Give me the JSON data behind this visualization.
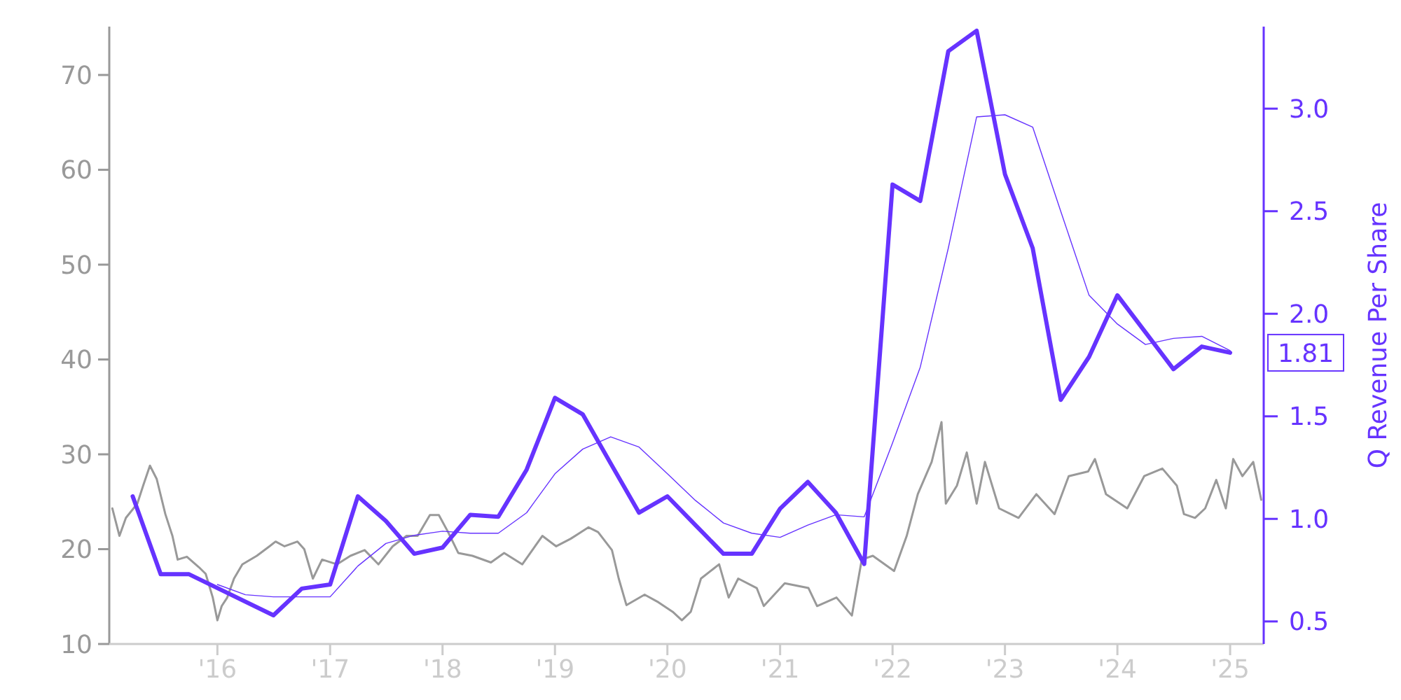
{
  "chart_data": {
    "type": "line",
    "y2label": "Q Revenue Per Share",
    "xlim": [
      "2015-01-15",
      "2025-04-20"
    ],
    "xticks": [
      {
        "value": "2016-01-01",
        "label": "'16"
      },
      {
        "value": "2017-01-01",
        "label": "'17"
      },
      {
        "value": "2018-01-01",
        "label": "'18"
      },
      {
        "value": "2019-01-01",
        "label": "'19"
      },
      {
        "value": "2020-01-01",
        "label": "'20"
      },
      {
        "value": "2021-01-01",
        "label": "'21"
      },
      {
        "value": "2022-01-01",
        "label": "'22"
      },
      {
        "value": "2023-01-01",
        "label": "'23"
      },
      {
        "value": "2024-01-01",
        "label": "'24"
      },
      {
        "value": "2025-01-01",
        "label": "'25"
      }
    ],
    "ylim": [
      10,
      75.1
    ],
    "yticks": [
      10,
      20,
      30,
      40,
      50,
      60,
      70
    ],
    "y2lim": [
      0.39,
      3.4
    ],
    "y2ticks": [
      0.5,
      {
        "value": 1,
        "label": "1.0"
      },
      1.5,
      {
        "value": 2,
        "label": "2.0"
      },
      2.5,
      {
        "value": 3,
        "label": "3.0"
      }
    ],
    "grid": false,
    "marker": "none",
    "line_style": "solid",
    "annotations": [
      "1.81"
    ],
    "series": [
      {
        "color": "#999999",
        "x": [
          "2015-01-25",
          "2015-02-17",
          "2015-03-10",
          "2015-04-16",
          "2015-05-05",
          "2015-05-27",
          "2015-06-18",
          "2015-07-16",
          "2015-08-08",
          "2015-08-25",
          "2015-09-24",
          "2015-11-02",
          "2015-11-24",
          "2015-12-17",
          "2016-01-01",
          "2016-01-15",
          "2016-02-02",
          "2016-02-24",
          "2016-03-22",
          "2016-05-08",
          "2016-06-18",
          "2016-07-08",
          "2016-08-06",
          "2016-09-17",
          "2016-10-09",
          "2016-11-06",
          "2016-12-06",
          "2017-01-23",
          "2017-03-08",
          "2017-04-23",
          "2017-06-07",
          "2017-07-23",
          "2017-09-06",
          "2017-10-12",
          "2017-11-21",
          "2017-12-20",
          "2018-01-19",
          "2018-02-21",
          "2018-04-08",
          "2018-06-07",
          "2018-07-20",
          "2018-09-17",
          "2018-11-21",
          "2019-01-05",
          "2019-02-21",
          "2019-04-20",
          "2019-05-21",
          "2019-07-05",
          "2019-07-27",
          "2019-08-21",
          "2019-10-19",
          "2019-12-03",
          "2020-01-18",
          "2020-02-17",
          "2020-03-17",
          "2020-04-19",
          "2020-06-17",
          "2020-07-18",
          "2020-08-18",
          "2020-10-17",
          "2020-11-09",
          "2021-01-16",
          "2021-04-03",
          "2021-05-01",
          "2021-07-03",
          "2021-08-22",
          "2021-09-23",
          "2021-10-29",
          "2022-01-06",
          "2022-02-16",
          "2022-03-24",
          "2022-05-08",
          "2022-06-09",
          "2022-06-23",
          "2022-07-29",
          "2022-08-30",
          "2022-10-01",
          "2022-10-28",
          "2022-12-13",
          "2023-02-14",
          "2023-04-13",
          "2023-06-11",
          "2023-07-27",
          "2023-09-28",
          "2023-10-20",
          "2023-11-25",
          "2024-02-02",
          "2024-03-28",
          "2024-05-26",
          "2024-07-12",
          "2024-08-04",
          "2024-09-09",
          "2024-10-12",
          "2024-11-17",
          "2024-12-18",
          "2025-01-11",
          "2025-02-10",
          "2025-03-17",
          "2025-04-12"
        ],
        "values": [
          24.3,
          21.4,
          23.3,
          24.8,
          26.7,
          28.8,
          27.4,
          23.7,
          21.4,
          18.9,
          19.2,
          18.1,
          17.4,
          14.9,
          12.5,
          14.0,
          14.9,
          16.9,
          18.4,
          19.3,
          20.3,
          20.8,
          20.3,
          20.8,
          20.0,
          16.9,
          18.9,
          18.4,
          19.3,
          19.9,
          18.4,
          20.3,
          21.4,
          21.4,
          23.6,
          23.6,
          21.8,
          19.6,
          19.3,
          18.6,
          19.6,
          18.4,
          21.4,
          20.3,
          21.1,
          22.3,
          21.8,
          19.9,
          16.9,
          14.1,
          15.2,
          14.4,
          13.4,
          12.5,
          13.4,
          16.9,
          18.4,
          14.9,
          16.9,
          15.9,
          14.0,
          16.4,
          15.9,
          14.0,
          14.9,
          13.0,
          18.9,
          19.3,
          17.7,
          21.4,
          25.8,
          29.2,
          33.4,
          24.8,
          26.7,
          30.2,
          24.8,
          29.2,
          24.3,
          23.3,
          25.8,
          23.7,
          27.7,
          28.2,
          29.5,
          25.8,
          24.3,
          27.7,
          28.5,
          26.7,
          23.7,
          23.3,
          24.3,
          27.3,
          24.3,
          29.5,
          27.7,
          29.2,
          25.2
        ]
      },
      {
        "color": "#6633ff",
        "axis": "y2",
        "x": [
          "2015-04-01",
          "2015-07-01",
          "2015-10-01",
          "2016-07-01",
          "2016-10-01",
          "2017-01-01",
          "2017-04-01",
          "2017-07-01",
          "2017-10-01",
          "2018-01-01",
          "2018-04-01",
          "2018-07-01",
          "2018-10-01",
          "2019-01-01",
          "2019-04-01",
          "2019-07-01",
          "2019-10-01",
          "2020-01-01",
          "2020-04-01",
          "2020-07-01",
          "2020-10-01",
          "2021-01-01",
          "2021-04-01",
          "2021-07-01",
          "2021-10-01",
          "2022-01-01",
          "2022-04-01",
          "2022-07-01",
          "2022-10-01",
          "2023-01-01",
          "2023-04-01",
          "2023-07-01",
          "2023-10-01",
          "2024-01-01",
          "2024-04-01",
          "2024-07-01",
          "2024-10-01",
          "2025-01-01"
        ],
        "values": [
          1.11,
          0.73,
          0.73,
          0.53,
          0.66,
          0.68,
          1.11,
          0.99,
          0.83,
          0.86,
          1.02,
          1.01,
          1.24,
          1.59,
          1.51,
          1.27,
          1.03,
          1.11,
          0.97,
          0.83,
          0.83,
          1.05,
          1.18,
          1.03,
          0.78,
          2.63,
          2.55,
          3.28,
          3.38,
          2.68,
          2.32,
          1.58,
          1.79,
          2.09,
          1.91,
          1.73,
          1.84,
          1.81
        ]
      },
      {
        "color": "#6633ff",
        "axis": "y2",
        "x": [
          "2016-01-01",
          "2016-04-01",
          "2016-07-01",
          "2016-10-01",
          "2017-01-01",
          "2017-04-01",
          "2017-07-01",
          "2017-10-01",
          "2018-01-01",
          "2018-04-01",
          "2018-07-01",
          "2018-10-01",
          "2019-01-01",
          "2019-04-01",
          "2019-07-01",
          "2019-10-01",
          "2020-01-01",
          "2020-04-01",
          "2020-07-01",
          "2020-10-01",
          "2021-01-01",
          "2021-04-01",
          "2021-07-01",
          "2021-10-01",
          "2022-01-01",
          "2022-04-01",
          "2022-07-01",
          "2022-10-01",
          "2023-01-01",
          "2023-04-01",
          "2023-07-01",
          "2023-10-01",
          "2024-01-01",
          "2024-04-01",
          "2024-07-01",
          "2024-10-01",
          "2025-01-01"
        ],
        "values": [
          0.68,
          0.63,
          0.62,
          0.62,
          0.62,
          0.77,
          0.88,
          0.92,
          0.94,
          0.93,
          0.93,
          1.03,
          1.22,
          1.34,
          1.4,
          1.35,
          1.22,
          1.09,
          0.98,
          0.93,
          0.91,
          0.97,
          1.02,
          1.01,
          1.37,
          1.74,
          2.32,
          2.96,
          2.97,
          2.91,
          2.5,
          2.09,
          1.95,
          1.85,
          1.88,
          1.89,
          1.82
        ]
      }
    ]
  }
}
